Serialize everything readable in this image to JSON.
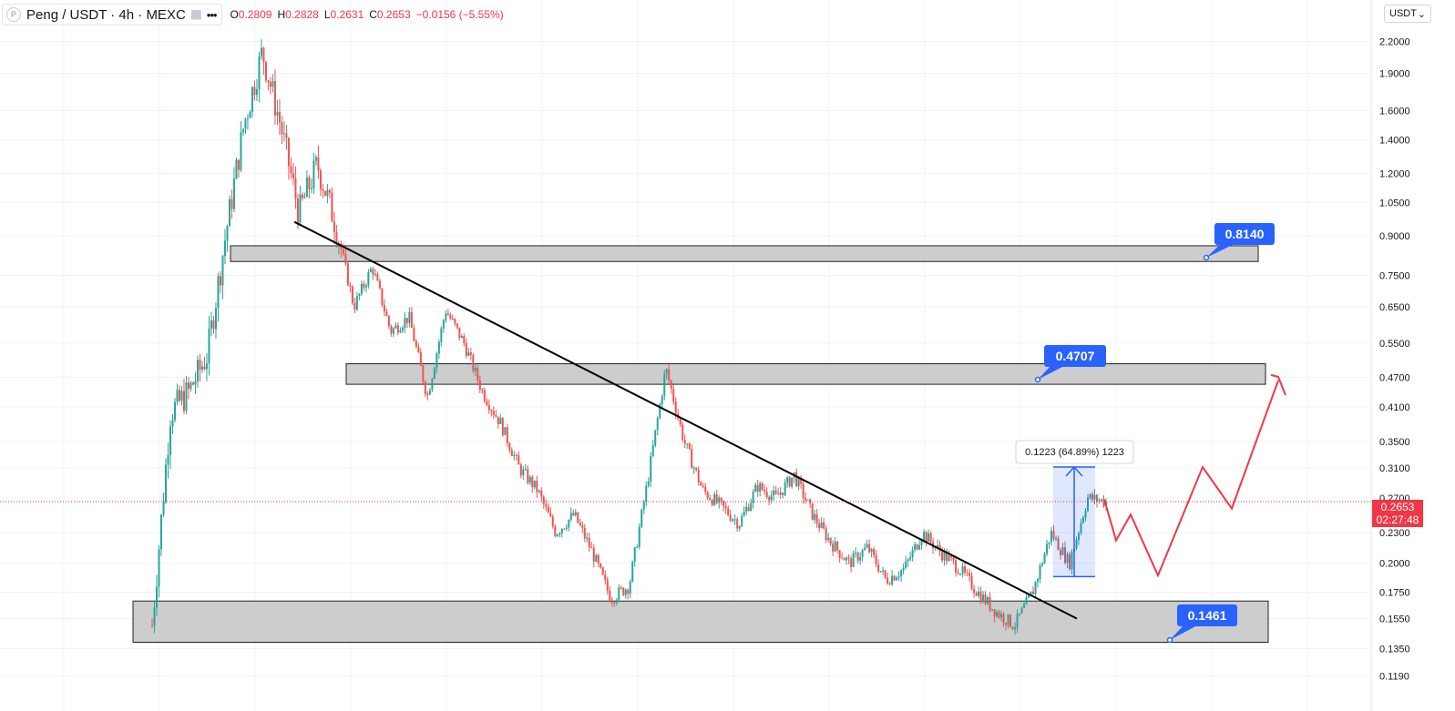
{
  "header": {
    "symbol": "Peng / USDT · 4h · MEXC",
    "ohlc": {
      "o": "0.2809",
      "h": "0.2828",
      "l": "0.2631",
      "c": "0.2653",
      "chg": "−0.0156 (−5.55%)"
    },
    "currency_label": "USDT"
  },
  "price_tag": {
    "price": "0.2653",
    "timer": "02:27:48"
  },
  "callouts": {
    "res_top": "0.8140",
    "res_mid": "0.4707",
    "support": "0.1461"
  },
  "measure_label": "0.1223 (64.89%) 1223",
  "colors": {
    "up": "#26a69a",
    "down": "#ef5350",
    "accent": "#2962ff",
    "projection": "#f23645",
    "zone_fill": "#c8c8c8"
  },
  "chart_data": {
    "type": "candlestick",
    "scale": "log",
    "ylim": [
      0.113,
      2.27
    ],
    "y_ticks": [
      "2.2000",
      "1.9000",
      "1.6000",
      "1.4000",
      "1.2000",
      "1.0500",
      "0.9000",
      "0.7500",
      "0.6500",
      "0.5500",
      "0.4700",
      "0.4100",
      "0.3500",
      "0.3100",
      "0.2700",
      "0.2300",
      "0.2000",
      "0.1750",
      "0.1550",
      "0.1350",
      "0.1190"
    ],
    "current_price": 0.2653,
    "zones": [
      {
        "name": "resistance-upper",
        "low": 0.8,
        "high": 0.86
      },
      {
        "name": "resistance-middle",
        "low": 0.455,
        "high": 0.5
      },
      {
        "name": "support",
        "low": 0.139,
        "high": 0.168
      }
    ],
    "trendline_price": {
      "from": 0.96,
      "to": 0.155
    },
    "measured_move": {
      "from": 0.188,
      "to": 0.311
    },
    "projection_prices": [
      0.268,
      0.222,
      0.25,
      0.189,
      0.311,
      0.257,
      0.463
    ],
    "price_path": [
      0.15,
      0.4,
      0.44,
      0.52,
      0.9,
      1.5,
      2.1,
      1.5,
      1.0,
      1.25,
      0.95,
      0.65,
      0.78,
      0.58,
      0.62,
      0.43,
      0.64,
      0.55,
      0.44,
      0.38,
      0.31,
      0.28,
      0.23,
      0.25,
      0.21,
      0.17,
      0.18,
      0.29,
      0.49,
      0.35,
      0.28,
      0.26,
      0.24,
      0.285,
      0.27,
      0.3,
      0.25,
      0.22,
      0.2,
      0.215,
      0.185,
      0.195,
      0.23,
      0.21,
      0.195,
      0.175,
      0.16,
      0.15,
      0.175,
      0.23,
      0.2,
      0.27,
      0.2653
    ]
  }
}
